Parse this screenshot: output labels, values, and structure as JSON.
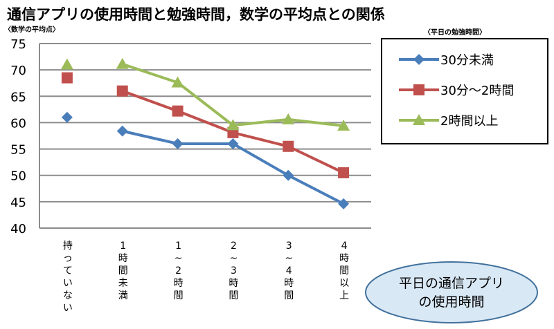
{
  "chart_data": {
    "type": "line",
    "title": "通信アプリの使用時間と勉強時間，数学の平均点との関係",
    "ylabel": "〈数学の平均点〉",
    "legend_title": "〈平日の勉強時間〉",
    "xlabel_box": [
      "平日の通信アプリ",
      "の使用時間"
    ],
    "ylim": [
      40,
      75
    ],
    "yticks": [
      40,
      45,
      50,
      55,
      60,
      65,
      70,
      75
    ],
    "grid": true,
    "legend_position": "top-right",
    "categories": [
      "持っていない",
      "1時間未満",
      "1~2時間",
      "2~3時間",
      "3~4時間",
      "4時間以上"
    ],
    "category_labels": [
      [
        "持",
        "っ",
        "て",
        "い",
        "な",
        "い"
      ],
      [
        "1",
        "時",
        "間",
        "未",
        "満"
      ],
      [
        "1",
        "~",
        "2",
        "時",
        "間"
      ],
      [
        "2",
        "~",
        "3",
        "時",
        "間"
      ],
      [
        "3",
        "~",
        "4",
        "時",
        "間"
      ],
      [
        "4",
        "時",
        "間",
        "以",
        "上"
      ]
    ],
    "series": [
      {
        "name": "30分未満",
        "color": "#4a7ebb",
        "marker": "diamond",
        "values": [
          61.0,
          58.4,
          56.0,
          56.0,
          50.0,
          44.6
        ],
        "connect_from": 1
      },
      {
        "name": "30分～2時間",
        "color": "#c0504d",
        "marker": "square",
        "values": [
          68.5,
          66.0,
          62.2,
          58.1,
          55.5,
          50.5
        ],
        "connect_from": 1
      },
      {
        "name": "2時間以上",
        "color": "#9bbb59",
        "marker": "triangle",
        "values": [
          71.0,
          71.1,
          67.6,
          59.5,
          60.6,
          59.4
        ],
        "connect_from": 1
      }
    ]
  }
}
